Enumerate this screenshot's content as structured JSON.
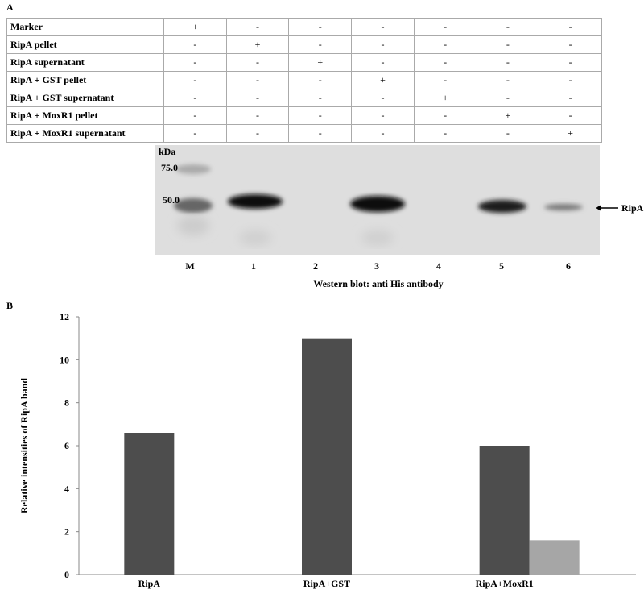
{
  "panel_a": {
    "label": "A",
    "rows": [
      [
        "Marker",
        "+",
        "-",
        "-",
        "-",
        "-",
        "-",
        "-"
      ],
      [
        "RipA pellet",
        "-",
        "+",
        "-",
        "-",
        "-",
        "-",
        "-"
      ],
      [
        "RipA supernatant",
        "-",
        "-",
        "+",
        "-",
        "-",
        "-",
        "-"
      ],
      [
        "RipA + GST pellet",
        "-",
        "-",
        "-",
        "+",
        "-",
        "-",
        "-"
      ],
      [
        "RipA + GST supernatant",
        "-",
        "-",
        "-",
        "-",
        "+",
        "-",
        "-"
      ],
      [
        "RipA + MoxR1 pellet",
        "-",
        "-",
        "-",
        "-",
        "-",
        "+",
        "-"
      ],
      [
        "RipA + MoxR1 supernatant",
        "-",
        "-",
        "-",
        "-",
        "-",
        "-",
        "+"
      ]
    ],
    "blot": {
      "unit": "kDa",
      "markers": [
        "75.0",
        "50.0"
      ],
      "lanes": [
        "M",
        "1",
        "2",
        "3",
        "4",
        "5",
        "6"
      ],
      "band_label": "RipA",
      "caption": "Western blot: anti His antibody"
    }
  },
  "panel_b": {
    "label": "B"
  },
  "chart_data": {
    "type": "bar",
    "y_label": "Relative intensities of RipA band",
    "categories": [
      "RipA",
      "RipA+GST",
      "RipA+MoxR1"
    ],
    "series": [
      {
        "color": "#4d4d4d",
        "values": [
          6.6,
          11,
          6
        ]
      },
      {
        "color": "#a6a6a6",
        "values": [
          null,
          null,
          1.6
        ]
      }
    ],
    "ylim": [
      0,
      12
    ],
    "yticks": [
      0,
      2,
      4,
      6,
      8,
      10,
      12
    ],
    "grid": false
  }
}
